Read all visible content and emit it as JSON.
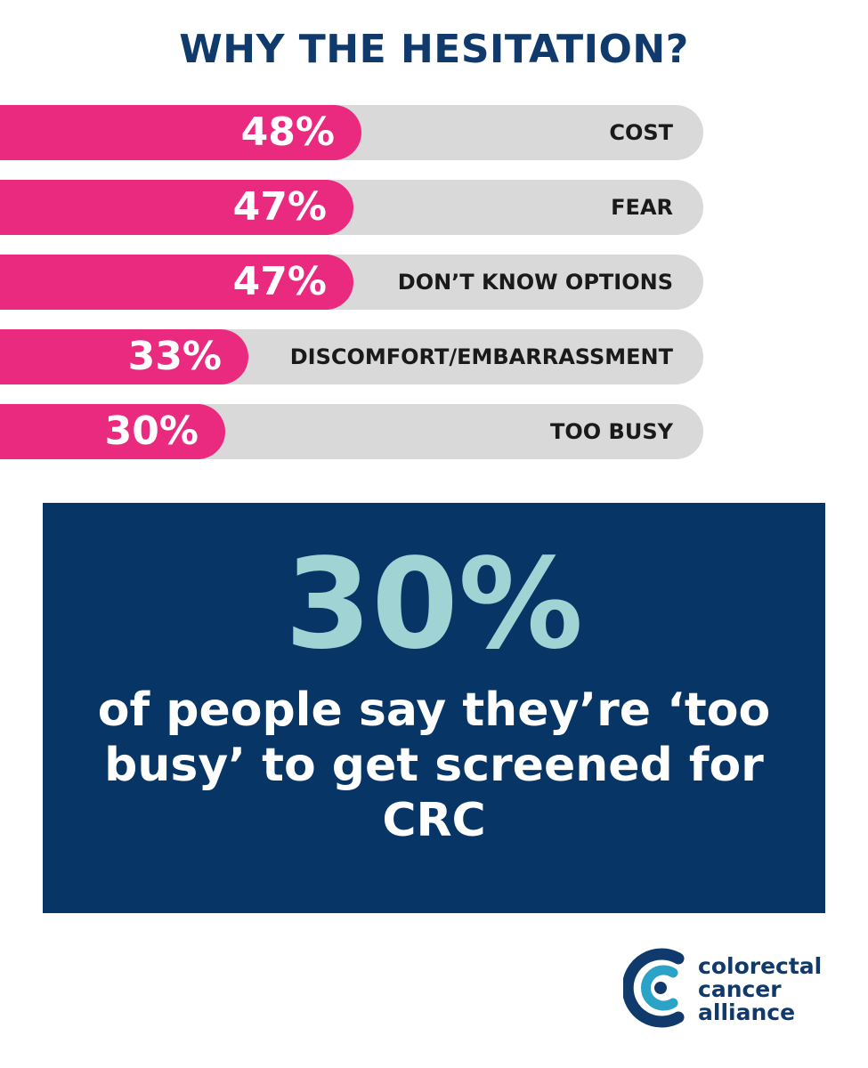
{
  "chart_data": {
    "type": "bar",
    "title": "WHY THE HESITATION?",
    "categories": [
      "COST",
      "FEAR",
      "DON’T KNOW OPTIONS",
      "DISCOMFORT/EMBARRASSMENT",
      "TOO BUSY"
    ],
    "values": [
      48,
      47,
      47,
      33,
      30
    ],
    "value_labels": [
      "48%",
      "47%",
      "47%",
      "33%",
      "30%"
    ],
    "colors": {
      "fill": "#ea2a7e",
      "track": "#d9d9d9"
    }
  },
  "callout": {
    "stat": "30%",
    "text": "of people say they’re ‘too busy’ to get screened for CRC",
    "colors": {
      "background": "#073566",
      "stat": "#9fd3d4",
      "text": "#ffffff"
    }
  },
  "logo": {
    "lines": [
      "colorectal",
      "cancer",
      "alliance"
    ],
    "colors": {
      "primary": "#0f3a6b",
      "accent": "#2aa3c7"
    }
  }
}
